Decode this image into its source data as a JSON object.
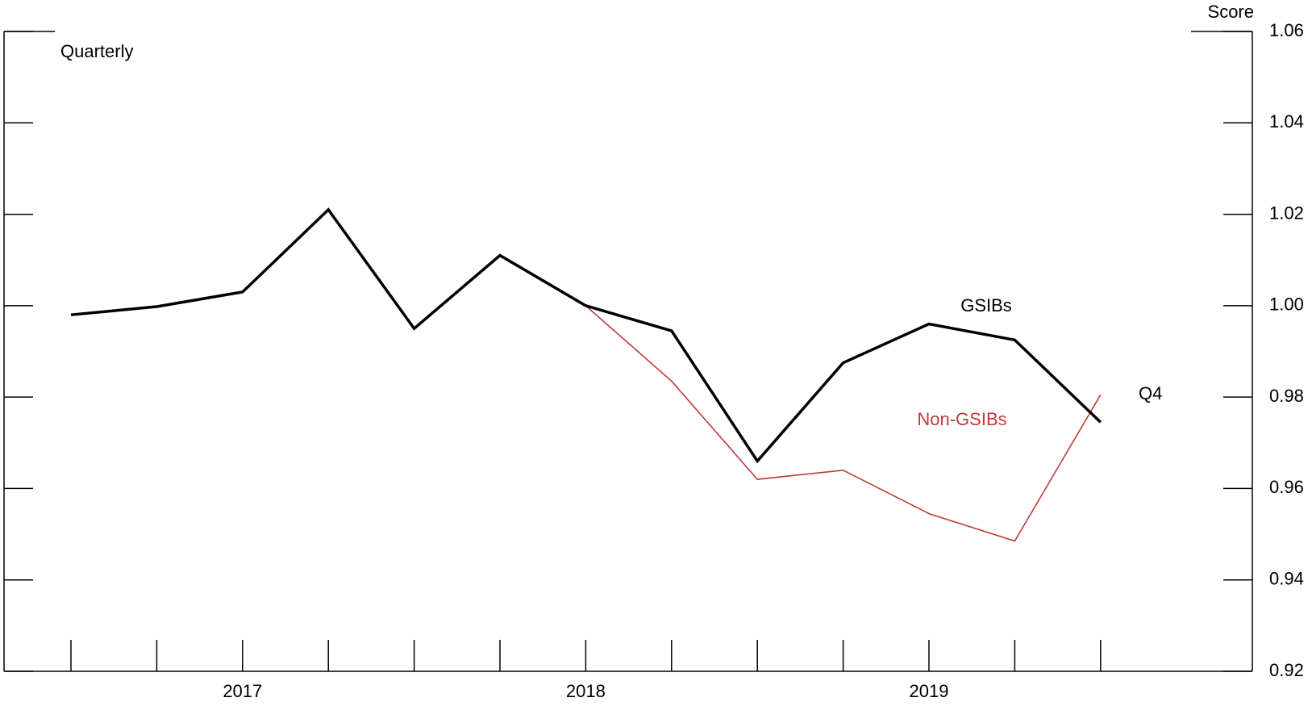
{
  "chart_data": {
    "type": "line",
    "y_label": "Score",
    "annotations": [
      "Quarterly",
      "Q4"
    ],
    "categories": [
      null,
      null,
      "2017",
      null,
      null,
      null,
      "2018",
      null,
      null,
      null,
      "2019",
      null,
      null
    ],
    "series": [
      {
        "name": "GSIBs",
        "color": "#000000",
        "values": [
          0.998,
          0.9998,
          1.003,
          1.021,
          0.995,
          1.011,
          1.0,
          0.9945,
          0.966,
          0.9875,
          0.996,
          0.9925,
          0.9745
        ]
      },
      {
        "name": "Non-GSIBs",
        "color": "#c0393b",
        "values": [
          null,
          null,
          null,
          null,
          null,
          null,
          1.0,
          0.9835,
          0.962,
          0.964,
          0.9545,
          0.9485,
          0.9805
        ]
      }
    ],
    "ylim": [
      0.92,
      1.06
    ],
    "yticks": [
      {
        "value": 0.92,
        "label": "0.92"
      },
      {
        "value": 0.94,
        "label": "0.94"
      },
      {
        "value": 0.96,
        "label": "0.96"
      },
      {
        "value": 0.98,
        "label": "0.98"
      },
      {
        "value": 1.0,
        "label": "1.00"
      },
      {
        "value": 1.02,
        "label": "1.02"
      },
      {
        "value": 1.04,
        "label": "1.04"
      },
      {
        "value": 1.06,
        "label": "1.06"
      }
    ]
  }
}
